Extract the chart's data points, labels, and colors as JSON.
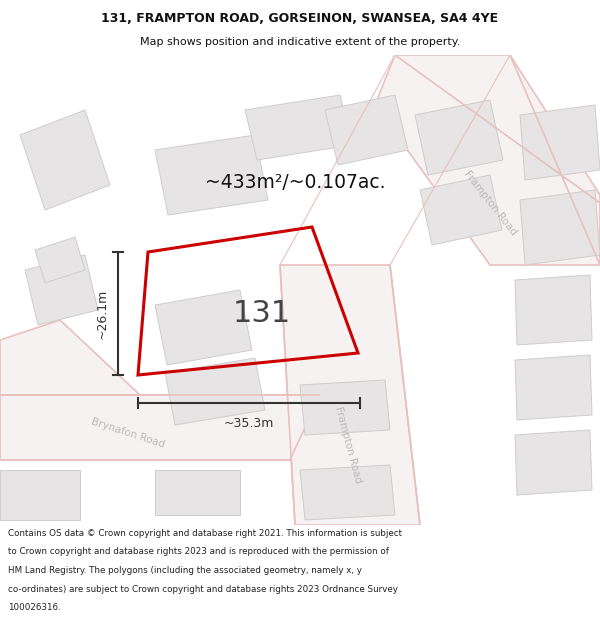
{
  "title_line1": "131, FRAMPTON ROAD, GORSEINON, SWANSEA, SA4 4YE",
  "title_line2": "Map shows position and indicative extent of the property.",
  "area_text": "~433m²/~0.107ac.",
  "house_number": "131",
  "dim_width": "~35.3m",
  "dim_height": "~26.1m",
  "footer_lines": [
    "Contains OS data © Crown copyright and database right 2021. This information is subject",
    "to Crown copyright and database rights 2023 and is reproduced with the permission of",
    "HM Land Registry. The polygons (including the associated geometry, namely x, y",
    "co-ordinates) are subject to Crown copyright and database rights 2023 Ordnance Survey",
    "100026316."
  ],
  "map_bg": "#f7f5f5",
  "road_fill": "#f7f2f2",
  "road_line": "#e8c0c0",
  "bld_fill": "#e6e4e4",
  "bld_edge": "#d0cccc",
  "plot_color": "#cc0000",
  "dim_color": "#333333",
  "road_label_color": "#bbbbbb",
  "title_color": "#111111",
  "footer_color": "#222222"
}
